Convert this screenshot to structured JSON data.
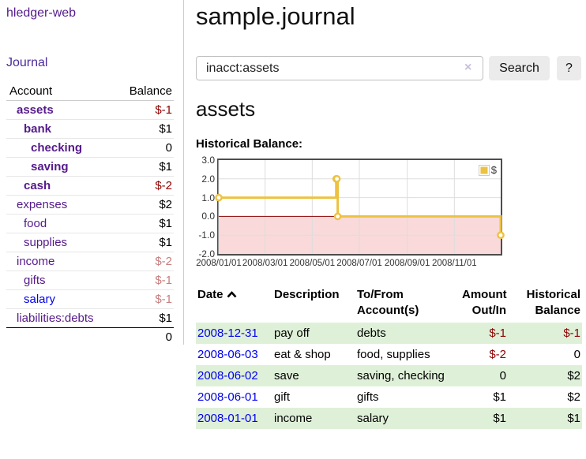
{
  "app": {
    "title": "hledger-web"
  },
  "sidebar": {
    "journal_label": "Journal",
    "table": {
      "headers": {
        "account": "Account",
        "balance": "Balance"
      },
      "rows": [
        {
          "account": "assets",
          "balance": "$-1",
          "indent": 0,
          "bold": true,
          "balance_class": "neg-strong"
        },
        {
          "account": "bank",
          "balance": "$1",
          "indent": 1,
          "bold": true,
          "balance_class": ""
        },
        {
          "account": "checking",
          "balance": "0",
          "indent": 2,
          "bold": true,
          "balance_class": ""
        },
        {
          "account": "saving",
          "balance": "$1",
          "indent": 2,
          "bold": true,
          "balance_class": ""
        },
        {
          "account": "cash",
          "balance": "$-2",
          "indent": 1,
          "bold": true,
          "balance_class": "neg-strong"
        },
        {
          "account": "expenses",
          "balance": "$2",
          "indent": 0,
          "bold": false,
          "balance_class": ""
        },
        {
          "account": "food",
          "balance": "$1",
          "indent": 1,
          "bold": false,
          "balance_class": ""
        },
        {
          "account": "supplies",
          "balance": "$1",
          "indent": 1,
          "bold": false,
          "balance_class": ""
        },
        {
          "account": "income",
          "balance": "$-2",
          "indent": 0,
          "bold": false,
          "balance_class": "neg-soft"
        },
        {
          "account": "gifts",
          "balance": "$-1",
          "indent": 1,
          "bold": false,
          "balance_class": "neg-soft"
        },
        {
          "account": "salary",
          "balance": "$-1",
          "indent": 1,
          "bold": false,
          "balance_class": "neg-soft",
          "link_blue": true
        },
        {
          "account": "liabilities:debts",
          "balance": "$1",
          "indent": 0,
          "bold": false,
          "balance_class": ""
        }
      ],
      "total": "0"
    }
  },
  "header": {
    "title": "sample.journal"
  },
  "search": {
    "value": "inacct:assets",
    "clear_icon": "×",
    "button_label": "Search",
    "help_label": "?"
  },
  "main": {
    "account_title": "assets",
    "chart_label": "Historical Balance:"
  },
  "chart_data": {
    "type": "line",
    "title": "Historical Balance:",
    "step": true,
    "series": [
      {
        "name": "$",
        "color": "#edc240",
        "points": [
          [
            "2008-01-01",
            1
          ],
          [
            "2008-06-01",
            2
          ],
          [
            "2008-06-02",
            2
          ],
          [
            "2008-06-03",
            0
          ],
          [
            "2008-12-31",
            -1
          ]
        ]
      }
    ],
    "x_range": [
      "2008-01-01",
      "2008-12-31"
    ],
    "x_ticks": [
      "2008/01/01",
      "2008/03/01",
      "2008/05/01",
      "2008/07/01",
      "2008/09/01",
      "2008/11/01"
    ],
    "y_ticks": [
      3.0,
      2.0,
      1.0,
      0.0,
      -1.0,
      -2.0
    ],
    "ylim": [
      -2,
      3
    ],
    "grid": true,
    "gridline_color": "#dddddd",
    "zero_line_color": "#8b0000",
    "negative_region_color": "#f9d9d9",
    "legend_position": "top-right",
    "legend_label": "$"
  },
  "register": {
    "headers": {
      "date": "Date",
      "description": "Description",
      "accounts": "To/From Account(s)",
      "amount": "Amount Out/In",
      "balance": "Historical Balance"
    },
    "sort_icon": "chevron-up",
    "rows": [
      {
        "date": "2008-12-31",
        "description": "pay off",
        "accounts": "debts",
        "amount": "$-1",
        "balance": "$-1",
        "amount_neg": true,
        "balance_neg": true
      },
      {
        "date": "2008-06-03",
        "description": "eat & shop",
        "accounts": "food, supplies",
        "amount": "$-2",
        "balance": "0",
        "amount_neg": true,
        "balance_neg": false
      },
      {
        "date": "2008-06-02",
        "description": "save",
        "accounts": "saving, checking",
        "amount": "0",
        "balance": "$2",
        "amount_neg": false,
        "balance_neg": false
      },
      {
        "date": "2008-06-01",
        "description": "gift",
        "accounts": "gifts",
        "amount": "$1",
        "balance": "$2",
        "amount_neg": false,
        "balance_neg": false
      },
      {
        "date": "2008-01-01",
        "description": "income",
        "accounts": "salary",
        "amount": "$1",
        "balance": "$1",
        "amount_neg": false,
        "balance_neg": false
      }
    ]
  },
  "colors": {
    "link_purple": "#551a8b",
    "link_blue": "#0000ee",
    "negative_strong": "#8b0000",
    "negative_soft": "#c67f7f",
    "row_stripe_green": "#dff0d8",
    "series_gold": "#edc240"
  }
}
